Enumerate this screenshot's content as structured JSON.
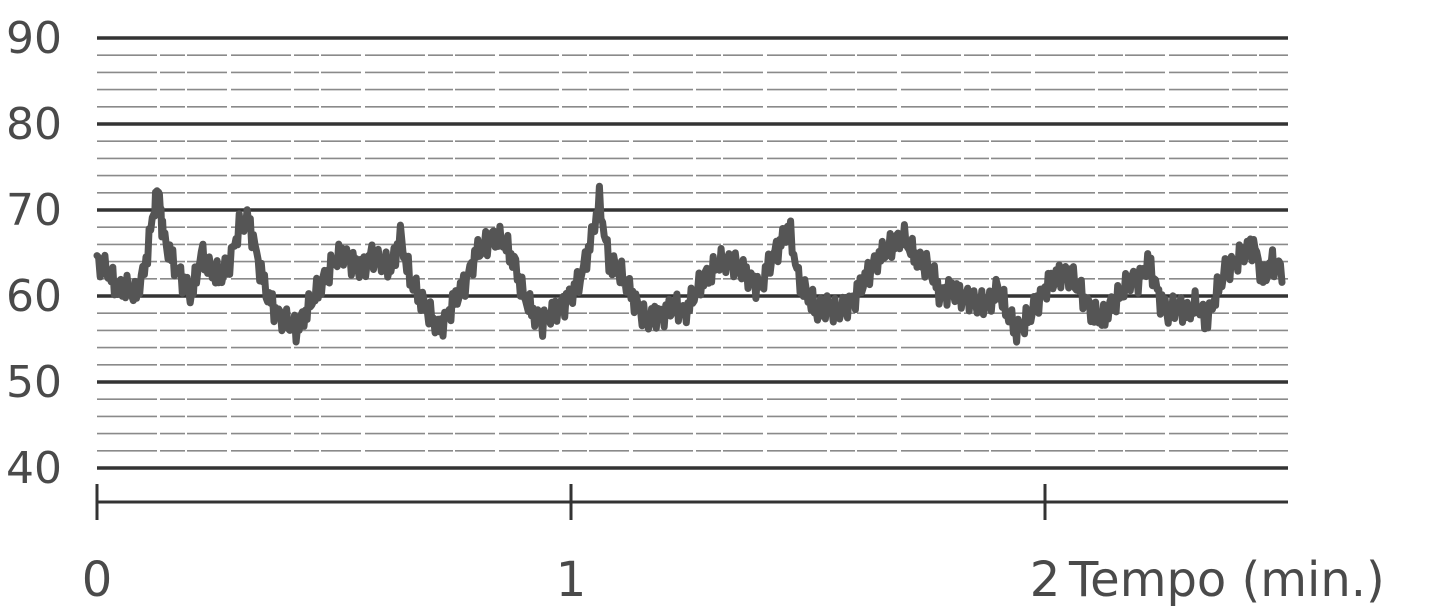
{
  "chart_data": {
    "type": "line",
    "title": "",
    "xlabel": "Tempo (min.)",
    "ylabel": "",
    "xlim": [
      0,
      2.5
    ],
    "ylim": [
      40,
      90
    ],
    "yticks": [
      40,
      50,
      60,
      70,
      80,
      90
    ],
    "ytick_labels": [
      "40",
      "50",
      "60",
      "70",
      "80",
      "90"
    ],
    "xticks": [
      0,
      1,
      2
    ],
    "xtick_labels": [
      "0",
      "1",
      "2"
    ],
    "grid": true,
    "colors": {
      "trace": "#555555",
      "grid": "#333333",
      "minor_grid": "#8a8a8a",
      "text": "#4a4a4a"
    },
    "series": [
      {
        "x": [
          0.0,
          0.02,
          0.04,
          0.06,
          0.08,
          0.1,
          0.12,
          0.13,
          0.14,
          0.16,
          0.18,
          0.2,
          0.22,
          0.24,
          0.26,
          0.28,
          0.3,
          0.32,
          0.34,
          0.36,
          0.38,
          0.4,
          0.42,
          0.44,
          0.46,
          0.48,
          0.5,
          0.52,
          0.54,
          0.56,
          0.58,
          0.6,
          0.62,
          0.64,
          0.66,
          0.68,
          0.7,
          0.72,
          0.74,
          0.76,
          0.78,
          0.8,
          0.82,
          0.84,
          0.86,
          0.88,
          0.9,
          0.92,
          0.94,
          0.96,
          0.98,
          1.0,
          1.02,
          1.04,
          1.06,
          1.08,
          1.1,
          1.12,
          1.14,
          1.16,
          1.18,
          1.2,
          1.22,
          1.24,
          1.26,
          1.28,
          1.3,
          1.32,
          1.34,
          1.36,
          1.38,
          1.4,
          1.42,
          1.44,
          1.46,
          1.48,
          1.5,
          1.52,
          1.54,
          1.56,
          1.58,
          1.6,
          1.62,
          1.64,
          1.66,
          1.68,
          1.7,
          1.72,
          1.74,
          1.76,
          1.78,
          1.8,
          1.82,
          1.84,
          1.86,
          1.88,
          1.9,
          1.92,
          1.94,
          1.96,
          1.98,
          2.0,
          2.02,
          2.04,
          2.06,
          2.08,
          2.1,
          2.12,
          2.14,
          2.16,
          2.18,
          2.2,
          2.22,
          2.24,
          2.26,
          2.28,
          2.3,
          2.32,
          2.34,
          2.36,
          2.38,
          2.4,
          2.42,
          2.44,
          2.46,
          2.48,
          2.5
        ],
        "y": [
          64,
          63,
          61,
          61,
          60,
          63,
          70,
          72,
          67,
          64,
          62,
          60,
          65,
          63,
          62,
          64,
          68,
          69,
          64,
          60,
          58,
          57,
          56,
          58,
          60,
          62,
          64,
          65,
          64,
          63,
          65,
          64,
          63,
          67,
          62,
          60,
          58,
          56,
          58,
          60,
          62,
          65,
          66,
          67,
          66,
          64,
          60,
          58,
          57,
          58,
          59,
          60,
          62,
          66,
          71,
          64,
          63,
          61,
          59,
          57,
          58,
          58,
          59,
          58,
          60,
          62,
          63,
          64,
          64,
          63,
          62,
          61,
          64,
          66,
          68,
          62,
          60,
          58,
          59,
          58,
          59,
          60,
          62,
          64,
          65,
          66,
          67,
          65,
          64,
          63,
          60,
          61,
          60,
          60,
          59,
          59,
          61,
          58,
          56,
          57,
          59,
          61,
          62,
          63,
          62,
          60,
          58,
          57,
          59,
          60,
          62,
          62,
          64,
          60,
          58,
          59,
          58,
          59,
          57,
          60,
          63,
          64,
          65,
          66,
          62,
          64,
          63
        ]
      }
    ]
  }
}
